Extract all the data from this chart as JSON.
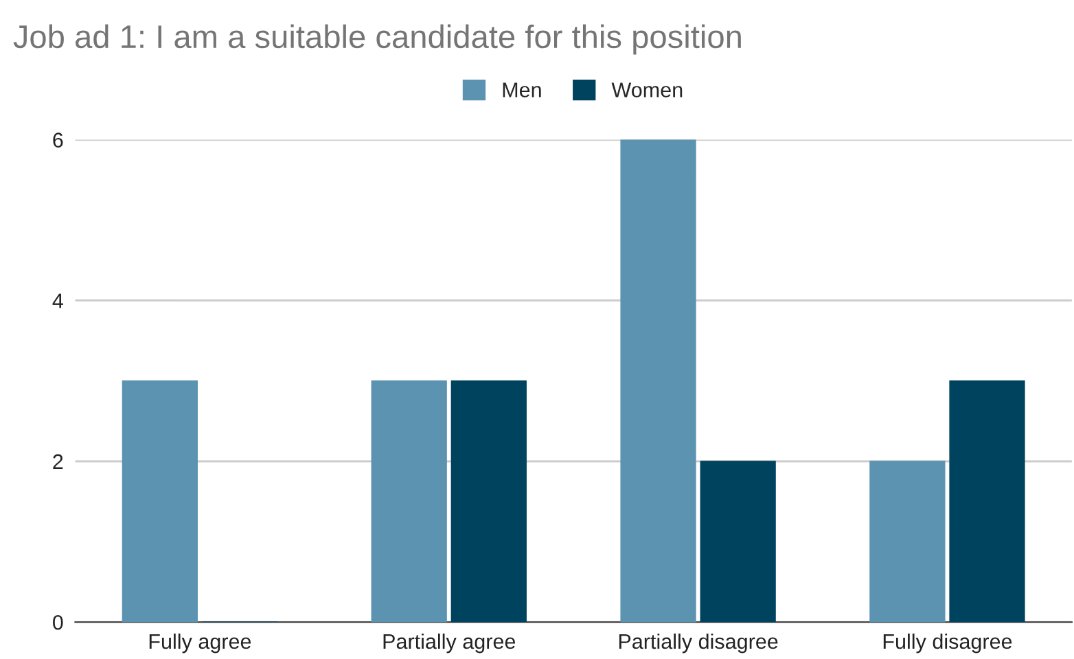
{
  "chart_data": {
    "type": "bar",
    "title": "Job ad 1: I am a suitable candidate for this position",
    "categories": [
      "Fully agree",
      "Partially agree",
      "Partially disagree",
      "Fully disagree"
    ],
    "series": [
      {
        "name": "Men",
        "color": "#5b93b1",
        "values": [
          3,
          3,
          6,
          2
        ]
      },
      {
        "name": "Women",
        "color": "#00435f",
        "values": [
          0,
          3,
          2,
          3
        ]
      }
    ],
    "ylim": [
      0,
      6
    ],
    "yticks": [
      0,
      2,
      4,
      6
    ],
    "grid": "y",
    "legend": "top"
  }
}
